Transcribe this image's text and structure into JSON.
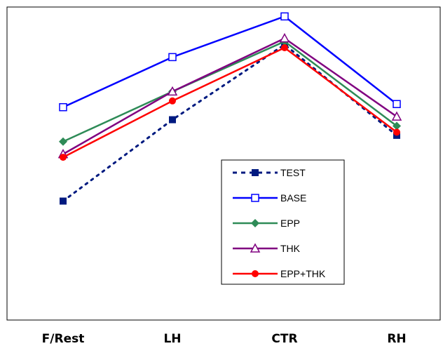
{
  "chart_data": {
    "type": "line",
    "categories": [
      "F/Rest",
      "LH",
      "CTR",
      "RH"
    ],
    "ylim": [
      0,
      100
    ],
    "grid": false,
    "legend_position": "center-right",
    "series": [
      {
        "name": "TEST",
        "values": [
          38,
          64,
          88,
          59
        ],
        "color": "#001a80",
        "dash": "dotted",
        "marker": "square-filled"
      },
      {
        "name": "BASE",
        "values": [
          68,
          84,
          97,
          69
        ],
        "color": "#0000ff",
        "dash": "solid",
        "marker": "square-open"
      },
      {
        "name": "EPP",
        "values": [
          57,
          73,
          89,
          62
        ],
        "color": "#2e8b57",
        "dash": "solid",
        "marker": "diamond-filled"
      },
      {
        "name": "THK",
        "values": [
          53,
          73,
          90,
          65
        ],
        "color": "#800080",
        "dash": "solid",
        "marker": "triangle-open"
      },
      {
        "name": "EPP+THK",
        "values": [
          52,
          70,
          87,
          60
        ],
        "color": "#ff0000",
        "dash": "solid",
        "marker": "circle-filled"
      }
    ]
  }
}
